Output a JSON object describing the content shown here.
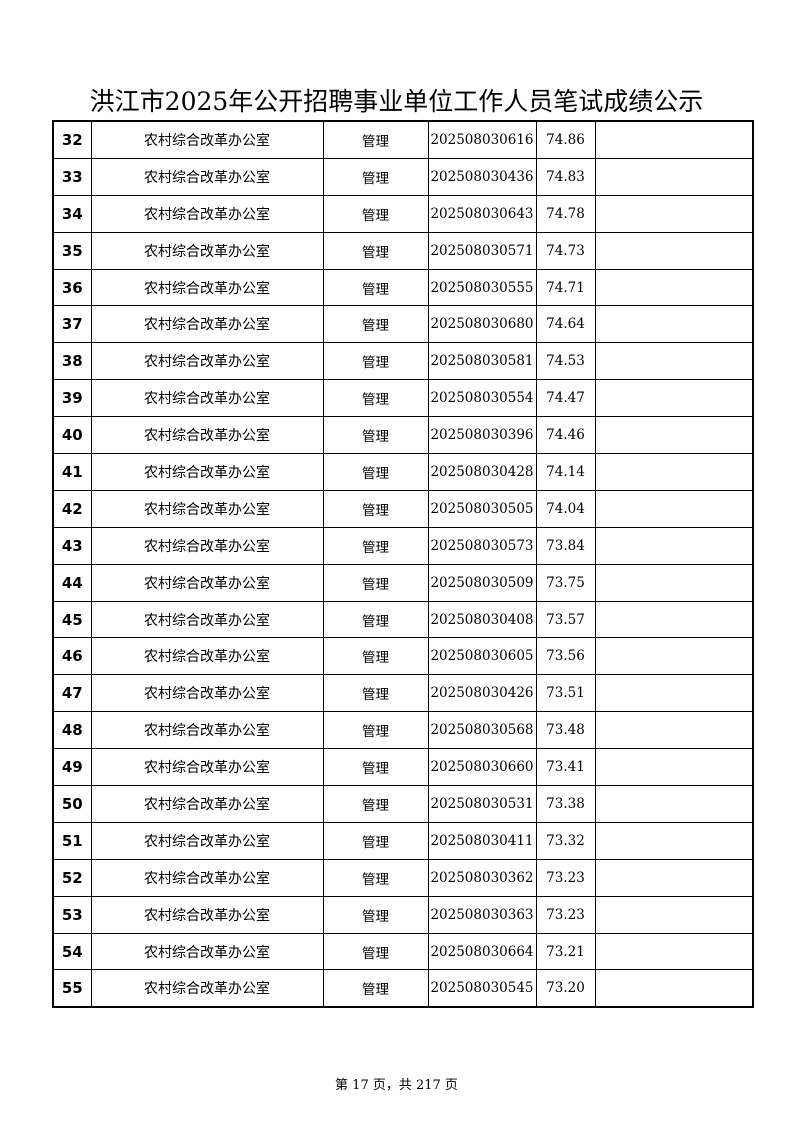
{
  "title": "洪江市2025年公开招聘事业单位工作人员笔试成绩公示",
  "rows": [
    {
      "no": "32",
      "unit": "农村综合改革办公室",
      "post": "管理",
      "ticket": "202508030616",
      "score": "74.86",
      "remark": ""
    },
    {
      "no": "33",
      "unit": "农村综合改革办公室",
      "post": "管理",
      "ticket": "202508030436",
      "score": "74.83",
      "remark": ""
    },
    {
      "no": "34",
      "unit": "农村综合改革办公室",
      "post": "管理",
      "ticket": "202508030643",
      "score": "74.78",
      "remark": ""
    },
    {
      "no": "35",
      "unit": "农村综合改革办公室",
      "post": "管理",
      "ticket": "202508030571",
      "score": "74.73",
      "remark": ""
    },
    {
      "no": "36",
      "unit": "农村综合改革办公室",
      "post": "管理",
      "ticket": "202508030555",
      "score": "74.71",
      "remark": ""
    },
    {
      "no": "37",
      "unit": "农村综合改革办公室",
      "post": "管理",
      "ticket": "202508030680",
      "score": "74.64",
      "remark": ""
    },
    {
      "no": "38",
      "unit": "农村综合改革办公室",
      "post": "管理",
      "ticket": "202508030581",
      "score": "74.53",
      "remark": ""
    },
    {
      "no": "39",
      "unit": "农村综合改革办公室",
      "post": "管理",
      "ticket": "202508030554",
      "score": "74.47",
      "remark": ""
    },
    {
      "no": "40",
      "unit": "农村综合改革办公室",
      "post": "管理",
      "ticket": "202508030396",
      "score": "74.46",
      "remark": ""
    },
    {
      "no": "41",
      "unit": "农村综合改革办公室",
      "post": "管理",
      "ticket": "202508030428",
      "score": "74.14",
      "remark": ""
    },
    {
      "no": "42",
      "unit": "农村综合改革办公室",
      "post": "管理",
      "ticket": "202508030505",
      "score": "74.04",
      "remark": ""
    },
    {
      "no": "43",
      "unit": "农村综合改革办公室",
      "post": "管理",
      "ticket": "202508030573",
      "score": "73.84",
      "remark": ""
    },
    {
      "no": "44",
      "unit": "农村综合改革办公室",
      "post": "管理",
      "ticket": "202508030509",
      "score": "73.75",
      "remark": ""
    },
    {
      "no": "45",
      "unit": "农村综合改革办公室",
      "post": "管理",
      "ticket": "202508030408",
      "score": "73.57",
      "remark": ""
    },
    {
      "no": "46",
      "unit": "农村综合改革办公室",
      "post": "管理",
      "ticket": "202508030605",
      "score": "73.56",
      "remark": ""
    },
    {
      "no": "47",
      "unit": "农村综合改革办公室",
      "post": "管理",
      "ticket": "202508030426",
      "score": "73.51",
      "remark": ""
    },
    {
      "no": "48",
      "unit": "农村综合改革办公室",
      "post": "管理",
      "ticket": "202508030568",
      "score": "73.48",
      "remark": ""
    },
    {
      "no": "49",
      "unit": "农村综合改革办公室",
      "post": "管理",
      "ticket": "202508030660",
      "score": "73.41",
      "remark": ""
    },
    {
      "no": "50",
      "unit": "农村综合改革办公室",
      "post": "管理",
      "ticket": "202508030531",
      "score": "73.38",
      "remark": ""
    },
    {
      "no": "51",
      "unit": "农村综合改革办公室",
      "post": "管理",
      "ticket": "202508030411",
      "score": "73.32",
      "remark": ""
    },
    {
      "no": "52",
      "unit": "农村综合改革办公室",
      "post": "管理",
      "ticket": "202508030362",
      "score": "73.23",
      "remark": ""
    },
    {
      "no": "53",
      "unit": "农村综合改革办公室",
      "post": "管理",
      "ticket": "202508030363",
      "score": "73.23",
      "remark": ""
    },
    {
      "no": "54",
      "unit": "农村综合改革办公室",
      "post": "管理",
      "ticket": "202508030664",
      "score": "73.21",
      "remark": ""
    },
    {
      "no": "55",
      "unit": "农村综合改革办公室",
      "post": "管理",
      "ticket": "202508030545",
      "score": "73.20",
      "remark": ""
    }
  ],
  "footer": "第 17 页，共 217 页"
}
